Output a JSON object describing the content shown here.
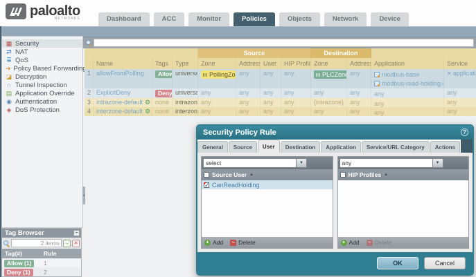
{
  "colors": {
    "allow_green": "#85b297",
    "deny_red": "#d5868d",
    "zone_yellow": "#f2e479",
    "zone_yellow_text": "#5a5638",
    "zone_green": "#79ad94",
    "accent_teal": "#2f7e92",
    "active_tab": "#44606f"
  },
  "icons": {
    "dropdown_arrow": "▼",
    "sort_asc": "▲",
    "add": "+",
    "delete": "−",
    "minimize": "−",
    "help": "?",
    "apply_arrow": "→",
    "close": "✕",
    "service_glyph": "✕",
    "gear_glyph": "⚙",
    "splitter_left": "◂"
  },
  "header": {
    "logo_primary": "paloalto",
    "logo_secondary": "NETWORKS",
    "tabs": [
      {
        "label": "Dashboard",
        "active": false
      },
      {
        "label": "ACC",
        "active": false
      },
      {
        "label": "Monitor",
        "active": false
      },
      {
        "label": "Policies",
        "active": true
      },
      {
        "label": "Objects",
        "active": false
      },
      {
        "label": "Network",
        "active": false
      },
      {
        "label": "Device",
        "active": false
      }
    ]
  },
  "toolbar": {
    "search_value": ""
  },
  "sidebar": {
    "items": [
      {
        "label": "Security",
        "selected": true,
        "icon": "security-icon",
        "glyph": "▦",
        "color": "#b5524a"
      },
      {
        "label": "NAT",
        "selected": false,
        "icon": "nat-icon",
        "glyph": "⇄",
        "color": "#4f81bd"
      },
      {
        "label": "QoS",
        "selected": false,
        "icon": "qos-icon",
        "glyph": "≣",
        "color": "#4f9bd5"
      },
      {
        "label": "Policy Based Forwarding",
        "selected": false,
        "icon": "pbf-icon",
        "glyph": "➜",
        "color": "#d98f3f"
      },
      {
        "label": "Decryption",
        "selected": false,
        "icon": "decryption-icon",
        "glyph": "◪",
        "color": "#c8a23f"
      },
      {
        "label": "Tunnel Inspection",
        "selected": false,
        "icon": "tunnel-inspection-icon",
        "glyph": "∩",
        "color": "#7a93b5"
      },
      {
        "label": "Application Override",
        "selected": false,
        "icon": "application-override-icon",
        "glyph": "▤",
        "color": "#7aa85a"
      },
      {
        "label": "Authentication",
        "selected": false,
        "icon": "authentication-icon",
        "glyph": "◉",
        "color": "#5a87b5"
      },
      {
        "label": "DoS Protection",
        "selected": false,
        "icon": "dos-protection-icon",
        "glyph": "◈",
        "color": "#b55a5a"
      }
    ]
  },
  "rulebase": {
    "group_headers": {
      "source": "Source",
      "destination": "Destination"
    },
    "columns": [
      "",
      "Name",
      "Tags",
      "Type",
      "Zone",
      "Address",
      "User",
      "HIP Profile",
      "Zone",
      "Address",
      "Application",
      "Service"
    ],
    "rows": [
      {
        "num": "1",
        "name": "allowFromPolling",
        "name_gear": false,
        "tag": "Allow",
        "tag_style": "allow",
        "type": "universal",
        "src_zone": {
          "text": "PollingZone",
          "badge": "yellow"
        },
        "src_address": "any",
        "src_user": "any",
        "hip_profile": "any",
        "dst_zone": {
          "text": "PLCZone",
          "badge": "green"
        },
        "dst_address": "any",
        "applications": [
          "modbus-base",
          "modbus-read-holding-registers"
        ],
        "service": "application-default",
        "tone": "blue"
      },
      {
        "num": "2",
        "name": "ExplicitDeny",
        "name_gear": false,
        "tag": "Deny",
        "tag_style": "deny",
        "type": "universal",
        "src_zone": {
          "text": "any"
        },
        "src_address": "any",
        "src_user": "any",
        "hip_profile": "any",
        "dst_zone": {
          "text": "any"
        },
        "dst_address": "any",
        "applications": [
          "any"
        ],
        "service": "any",
        "tone": "blue-alt"
      },
      {
        "num": "3",
        "name": "intrazone-default",
        "name_gear": true,
        "tag": "none",
        "tag_style": "none",
        "type": "intrazone",
        "src_zone": {
          "text": "any"
        },
        "src_address": "any",
        "src_user": "any",
        "hip_profile": "any",
        "dst_zone": {
          "text": "(intrazone)"
        },
        "dst_address": "any",
        "applications": [
          "any"
        ],
        "service": "any",
        "tone": "tan"
      },
      {
        "num": "4",
        "name": "interzone-default",
        "name_gear": true,
        "tag": "none",
        "tag_style": "none",
        "type": "interzone",
        "src_zone": {
          "text": "any"
        },
        "src_address": "any",
        "src_user": "any",
        "hip_profile": "any",
        "dst_zone": {
          "text": "any"
        },
        "dst_address": "any",
        "applications": [
          "any"
        ],
        "service": "any",
        "tone": "tan-alt"
      }
    ]
  },
  "dialog": {
    "title": "Security Policy Rule",
    "tabs": [
      {
        "label": "General",
        "active": false
      },
      {
        "label": "Source",
        "active": false
      },
      {
        "label": "User",
        "active": true
      },
      {
        "label": "Destination",
        "active": false
      },
      {
        "label": "Application",
        "active": false
      },
      {
        "label": "Service/URL Category",
        "active": false
      },
      {
        "label": "Actions",
        "active": false
      }
    ],
    "source_user_panel": {
      "dropdown_value": "select",
      "column_label": "Source User",
      "rows": [
        {
          "label": "CanReadHolding",
          "checked": true,
          "flagged": true
        }
      ],
      "add_label": "Add",
      "delete_label": "Delete",
      "delete_enabled": true
    },
    "hip_panel": {
      "dropdown_value": "any",
      "column_label": "HIP Profiles",
      "rows": [],
      "add_label": "Add",
      "delete_label": "Delete",
      "delete_enabled": false
    },
    "ok_label": "OK",
    "cancel_label": "Cancel"
  },
  "tag_browser": {
    "title": "Tag Browser",
    "items_count": "2 items",
    "columns": [
      "Tag(#)",
      "Rule"
    ],
    "rows": [
      {
        "tag": "Allow (1)",
        "style": "allow",
        "rule": "1"
      },
      {
        "tag": "Deny (1)",
        "style": "deny",
        "rule": "2"
      }
    ]
  }
}
